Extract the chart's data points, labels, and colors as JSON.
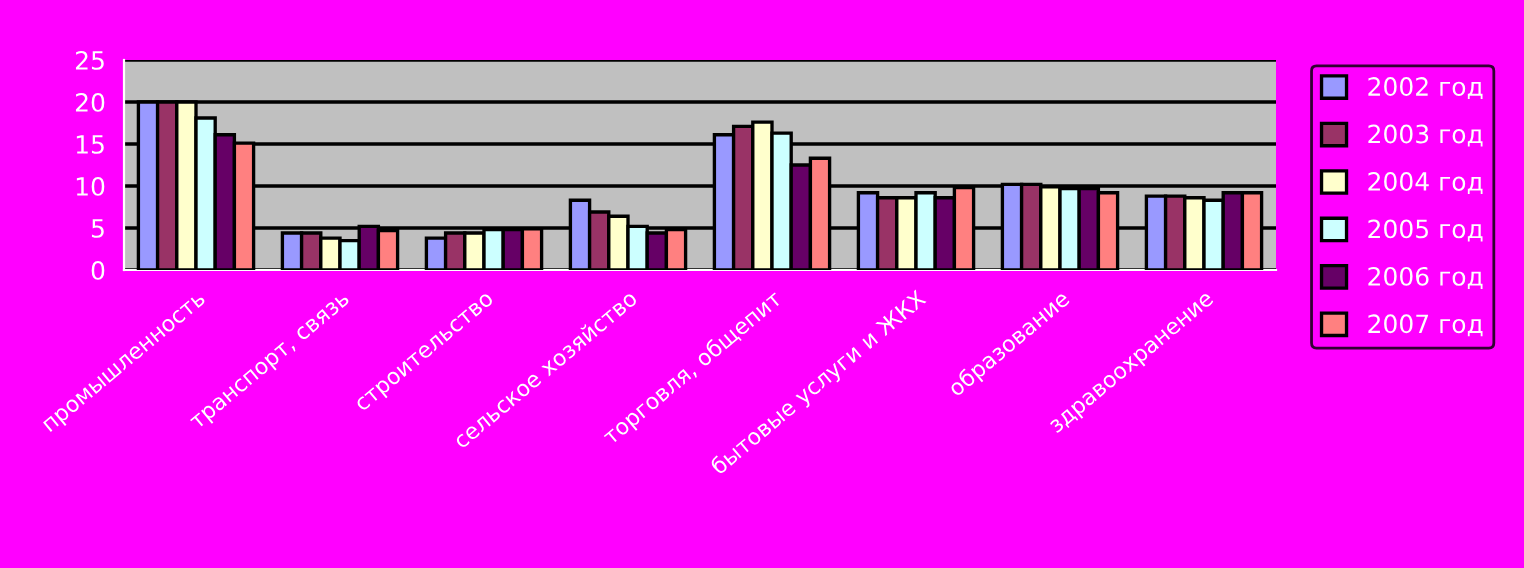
{
  "chart_data": {
    "type": "bar",
    "categories": [
      "промышленность",
      "транспорт, связь",
      "строительство",
      "сельское хозяйство",
      "торговля, общепит",
      "бытовые услуги и ЖКХ",
      "образование",
      "здравоохранение"
    ],
    "series": [
      {
        "name": "2002 год",
        "color": "#9999ff",
        "values": [
          20,
          4.4,
          3.8,
          8.3,
          16.1,
          9.2,
          10.2,
          8.8
        ]
      },
      {
        "name": "2003 год",
        "color": "#993366",
        "values": [
          20,
          4.4,
          4.4,
          6.9,
          17.1,
          8.6,
          10.2,
          8.8
        ]
      },
      {
        "name": "2004 год",
        "color": "#ffffcc",
        "values": [
          20,
          3.8,
          4.4,
          6.4,
          17.6,
          8.6,
          9.9,
          8.6
        ]
      },
      {
        "name": "2005 год",
        "color": "#ccffff",
        "values": [
          18.1,
          3.5,
          4.8,
          5.2,
          16.3,
          9.2,
          9.7,
          8.3
        ]
      },
      {
        "name": "2006 год",
        "color": "#660066",
        "values": [
          16.1,
          5.2,
          4.8,
          4.4,
          12.5,
          8.6,
          9.7,
          9.2
        ]
      },
      {
        "name": "2007 год",
        "color": "#ff8080",
        "values": [
          15.1,
          4.7,
          4.9,
          4.8,
          13.3,
          9.8,
          9.2,
          9.2
        ]
      }
    ],
    "ylim": [
      0,
      25
    ],
    "yticks": [
      0,
      5,
      10,
      15,
      20,
      25
    ],
    "grid": "y",
    "legend": "right"
  }
}
